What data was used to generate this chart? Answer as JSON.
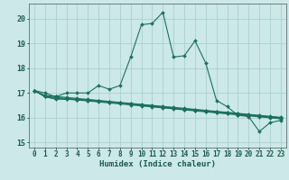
{
  "xlabel": "Humidex (Indice chaleur)",
  "background_color": "#cce8e8",
  "grid_color": "#aacfcf",
  "line_color": "#1a7060",
  "xlim": [
    -0.5,
    23.5
  ],
  "ylim": [
    14.8,
    20.6
  ],
  "yticks": [
    15,
    16,
    17,
    18,
    19,
    20
  ],
  "xtick_labels": [
    "0",
    "1",
    "2",
    "3",
    "4",
    "5",
    "6",
    "7",
    "8",
    "9",
    "10",
    "11",
    "12",
    "13",
    "14",
    "15",
    "16",
    "17",
    "18",
    "19",
    "20",
    "21",
    "22",
    "23"
  ],
  "series": [
    [
      17.1,
      17.0,
      16.85,
      17.0,
      17.0,
      17.0,
      17.3,
      17.15,
      17.3,
      18.45,
      19.75,
      19.8,
      20.25,
      18.45,
      18.5,
      19.1,
      18.2,
      16.7,
      16.45,
      16.1,
      16.05,
      15.45,
      15.8,
      15.9
    ],
    [
      17.1,
      16.85,
      16.75,
      16.75,
      16.73,
      16.7,
      16.67,
      16.63,
      16.6,
      16.55,
      16.5,
      16.46,
      16.42,
      16.38,
      16.34,
      16.3,
      16.26,
      16.22,
      16.18,
      16.14,
      16.1,
      16.06,
      16.02,
      15.98
    ],
    [
      17.1,
      16.85,
      16.78,
      16.75,
      16.72,
      16.68,
      16.64,
      16.6,
      16.56,
      16.52,
      16.48,
      16.44,
      16.4,
      16.36,
      16.32,
      16.28,
      16.24,
      16.2,
      16.16,
      16.12,
      16.08,
      16.04,
      16.0,
      15.96
    ],
    [
      17.1,
      16.87,
      16.82,
      16.78,
      16.75,
      16.72,
      16.68,
      16.64,
      16.6,
      16.56,
      16.52,
      16.48,
      16.44,
      16.4,
      16.36,
      16.32,
      16.28,
      16.24,
      16.2,
      16.16,
      16.12,
      16.08,
      16.04,
      16.0
    ],
    [
      17.1,
      16.9,
      16.86,
      16.82,
      16.78,
      16.74,
      16.7,
      16.66,
      16.62,
      16.58,
      16.54,
      16.5,
      16.46,
      16.42,
      16.38,
      16.34,
      16.3,
      16.26,
      16.22,
      16.18,
      16.14,
      16.1,
      16.06,
      16.02
    ]
  ]
}
